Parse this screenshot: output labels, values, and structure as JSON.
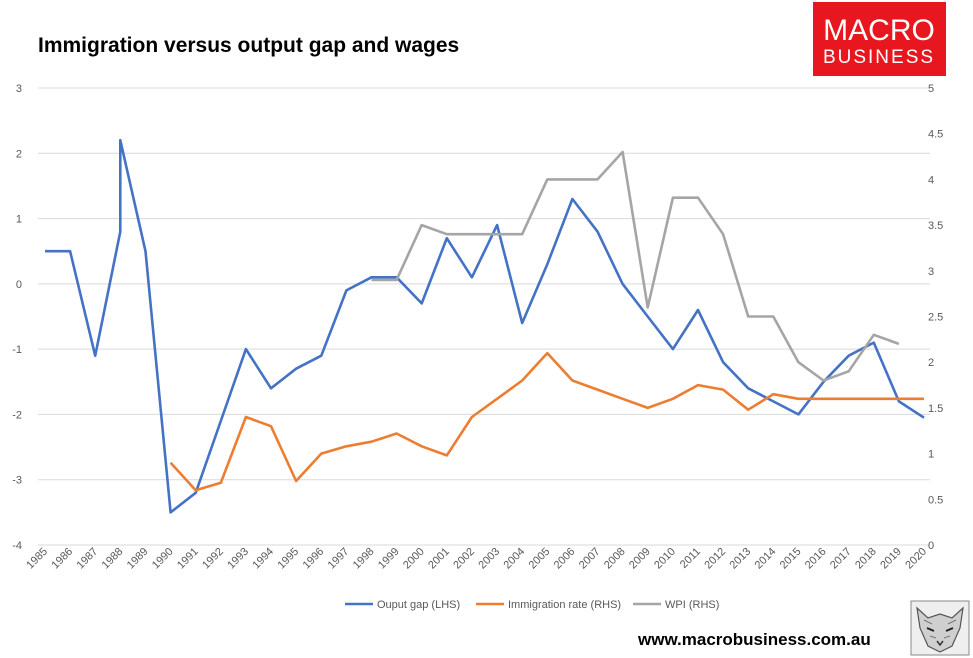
{
  "logo": {
    "line1": "MACRO",
    "line2": "BUSINESS",
    "color": "#e8171f"
  },
  "footer": {
    "url": "www.macrobusiness.com.au"
  },
  "chart_data": {
    "type": "line",
    "title": "Immigration versus output gap and wages",
    "x": [
      "1985",
      "1986",
      "1987",
      "1988",
      "1989",
      "1990",
      "1991",
      "1992",
      "1993",
      "1994",
      "1995",
      "1996",
      "1997",
      "1998",
      "1999",
      "2000",
      "2001",
      "2002",
      "2003",
      "2004",
      "2005",
      "2006",
      "2007",
      "2008",
      "2009",
      "2010",
      "2011",
      "2012",
      "2013",
      "2014",
      "2015",
      "2016",
      "2017",
      "2018",
      "2019",
      "2020"
    ],
    "y_left": {
      "min": -4,
      "max": 3,
      "ticks": [
        "3",
        "2",
        "1",
        "0",
        "-1",
        "-2",
        "-3",
        "-4"
      ]
    },
    "y_right": {
      "min": 0,
      "max": 5,
      "ticks": [
        "5",
        "4.5",
        "4",
        "3.5",
        "3",
        "2.5",
        "2",
        "1.5",
        "1",
        "0.5",
        "0"
      ]
    },
    "grid": true,
    "legend_position": "bottom",
    "series": [
      {
        "name": "Ouput gap (LHS)",
        "axis": "left",
        "color": "#4472c4",
        "points": [
          [
            1985,
            0.5
          ],
          [
            1986,
            0.5
          ],
          [
            1987,
            -1.1
          ],
          [
            1988,
            0.8
          ],
          [
            1988,
            2.2
          ],
          [
            1989,
            0.5
          ],
          [
            1990,
            -3.5
          ],
          [
            1991,
            -3.2
          ],
          [
            1992,
            -2.1
          ],
          [
            1993,
            -1.0
          ],
          [
            1994,
            -1.6
          ],
          [
            1995,
            -1.3
          ],
          [
            1996,
            -1.1
          ],
          [
            1997,
            -0.1
          ],
          [
            1998,
            0.1
          ],
          [
            1999,
            0.1
          ],
          [
            2000,
            -0.3
          ],
          [
            2001,
            0.7
          ],
          [
            2002,
            0.1
          ],
          [
            2003,
            0.9
          ],
          [
            2004,
            -0.6
          ],
          [
            2005,
            0.3
          ],
          [
            2006,
            1.3
          ],
          [
            2007,
            0.8
          ],
          [
            2008,
            0.0
          ],
          [
            2009,
            -0.5
          ],
          [
            2010,
            -1.0
          ],
          [
            2011,
            -0.4
          ],
          [
            2012,
            -1.2
          ],
          [
            2013,
            -1.6
          ],
          [
            2014,
            -1.8
          ],
          [
            2015,
            -2.0
          ],
          [
            2016,
            -1.5
          ],
          [
            2017,
            -1.1
          ],
          [
            2018,
            -0.9
          ],
          [
            2019,
            -1.8
          ],
          [
            2020,
            -2.05
          ]
        ]
      },
      {
        "name": "Immigration rate (RHS)",
        "axis": "right",
        "color": "#ed7d31",
        "points": [
          [
            1990,
            0.9
          ],
          [
            1991,
            0.6
          ],
          [
            1992,
            0.68
          ],
          [
            1993,
            1.4
          ],
          [
            1994,
            1.3
          ],
          [
            1995,
            0.7
          ],
          [
            1996,
            1.0
          ],
          [
            1997,
            1.08
          ],
          [
            1998,
            1.13
          ],
          [
            1999,
            1.22
          ],
          [
            2000,
            1.08
          ],
          [
            2001,
            0.98
          ],
          [
            2002,
            1.4
          ],
          [
            2003,
            1.6
          ],
          [
            2004,
            1.8
          ],
          [
            2005,
            2.1
          ],
          [
            2006,
            1.8
          ],
          [
            2007,
            1.7
          ],
          [
            2008,
            1.6
          ],
          [
            2009,
            1.5
          ],
          [
            2010,
            1.6
          ],
          [
            2011,
            1.75
          ],
          [
            2012,
            1.7
          ],
          [
            2013,
            1.48
          ],
          [
            2014,
            1.65
          ],
          [
            2015,
            1.6
          ],
          [
            2016,
            1.6
          ],
          [
            2017,
            1.6
          ],
          [
            2018,
            1.6
          ],
          [
            2019,
            1.6
          ],
          [
            2020,
            1.6
          ]
        ]
      },
      {
        "name": "WPI (RHS)",
        "axis": "right",
        "color": "#a5a5a5",
        "points": [
          [
            1998,
            2.9
          ],
          [
            1999,
            2.9
          ],
          [
            2000,
            3.5
          ],
          [
            2001,
            3.4
          ],
          [
            2002,
            3.4
          ],
          [
            2003,
            3.4
          ],
          [
            2004,
            3.4
          ],
          [
            2005,
            4.0
          ],
          [
            2006,
            4.0
          ],
          [
            2007,
            4.0
          ],
          [
            2008,
            4.3
          ],
          [
            2009,
            2.6
          ],
          [
            2010,
            3.8
          ],
          [
            2011,
            3.8
          ],
          [
            2012,
            3.4
          ],
          [
            2013,
            2.5
          ],
          [
            2014,
            2.5
          ],
          [
            2015,
            2.0
          ],
          [
            2016,
            1.8
          ],
          [
            2017,
            1.9
          ],
          [
            2018,
            2.3
          ],
          [
            2019,
            2.2
          ]
        ]
      }
    ]
  }
}
